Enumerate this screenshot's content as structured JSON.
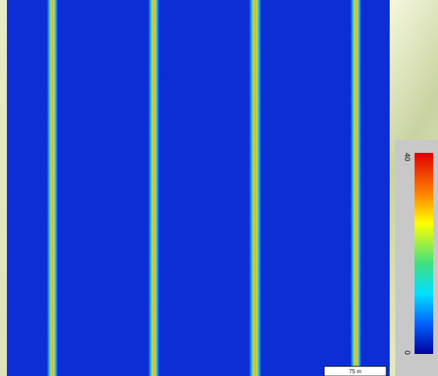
{
  "colorbar": {
    "max_label": "40",
    "min_label": "0"
  },
  "scale_bar": {
    "label": "75 m"
  }
}
